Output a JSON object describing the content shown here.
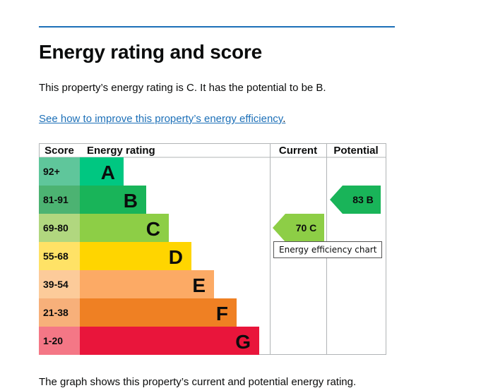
{
  "page": {
    "heading": "Energy rating and score",
    "summary": "This property’s energy rating is C. It has the potential to be B.",
    "link_text": "See how to improve this property’s energy efficiency",
    "link_tail": ".",
    "footer_text": "The graph shows this property’s current and potential energy rating."
  },
  "colors": {
    "rule": "#1d70b8",
    "link": "#1d70b8"
  },
  "chart_data": {
    "type": "table",
    "columns": [
      "Score",
      "Energy rating",
      "Current",
      "Potential"
    ],
    "bands": [
      {
        "score_range": "92+",
        "rating": "A",
        "score_color": "#5fc69b",
        "color": "#00c781"
      },
      {
        "score_range": "81-91",
        "rating": "B",
        "score_color": "#4cb372",
        "color": "#19b459"
      },
      {
        "score_range": "69-80",
        "rating": "C",
        "score_color": "#b1d77f",
        "color": "#8dce46"
      },
      {
        "score_range": "55-68",
        "rating": "D",
        "score_color": "#ffe266",
        "color": "#ffd500"
      },
      {
        "score_range": "39-54",
        "rating": "E",
        "score_color": "#fccb9a",
        "color": "#fcaa65"
      },
      {
        "score_range": "21-38",
        "rating": "F",
        "score_color": "#f7b07a",
        "color": "#ef8023"
      },
      {
        "score_range": "1-20",
        "rating": "G",
        "score_color": "#f47786",
        "color": "#e9153b"
      }
    ],
    "current": {
      "score": 70,
      "rating": "C",
      "label": "70 C",
      "color": "#8dce46"
    },
    "potential": {
      "score": 83,
      "rating": "B",
      "label": "83 B",
      "color": "#19b459"
    },
    "tooltip": "Energy efficiency chart"
  }
}
